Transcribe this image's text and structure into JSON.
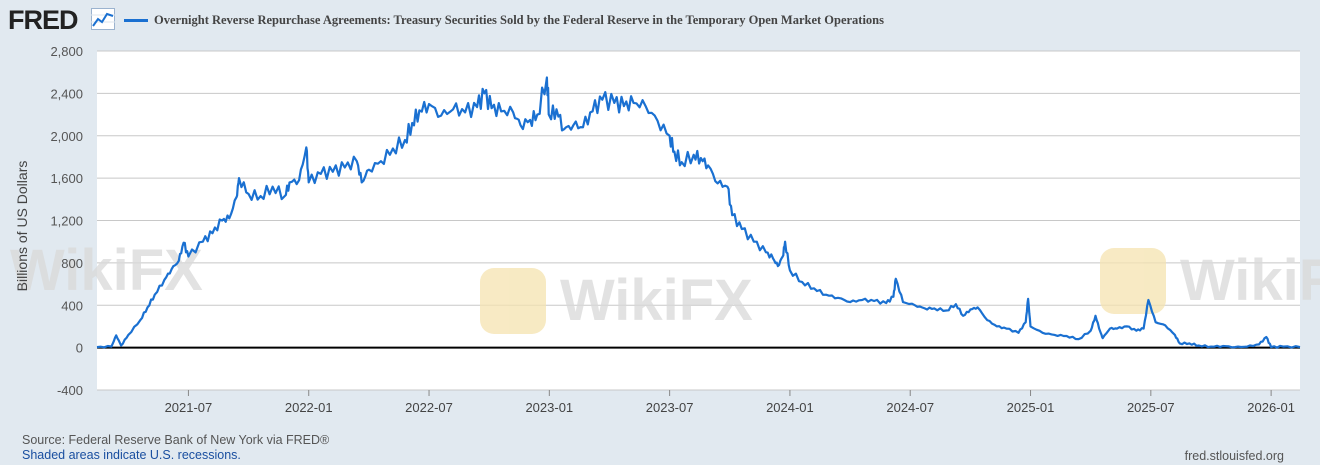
{
  "header": {
    "logo_text": "FRED",
    "logo_icon": "line-chart-icon"
  },
  "chart_data": {
    "type": "line",
    "title": "Overnight Reverse Repurchase Agreements: Treasury Securities Sold by the Federal Reserve in the Temporary Open Market Operations",
    "ylabel": "Billions of US Dollars",
    "xlabel": "",
    "ylim": [
      -400,
      2800
    ],
    "xlim": [
      2021.12,
      2026.12
    ],
    "yticks": [
      -400,
      0,
      400,
      800,
      1200,
      1600,
      2000,
      2400,
      2800
    ],
    "ytick_labels": [
      "-400",
      "0",
      "400",
      "800",
      "1,200",
      "1,600",
      "2,000",
      "2,400",
      "2,800"
    ],
    "xticks": [
      {
        "label": "2021-07",
        "t": 2021.5
      },
      {
        "label": "2022-01",
        "t": 2022.0
      },
      {
        "label": "2022-07",
        "t": 2022.5
      },
      {
        "label": "2023-01",
        "t": 2023.0
      },
      {
        "label": "2023-07",
        "t": 2023.5
      },
      {
        "label": "2024-01",
        "t": 2024.0
      },
      {
        "label": "2024-07",
        "t": 2024.5
      },
      {
        "label": "2025-01",
        "t": 2025.0
      },
      {
        "label": "2025-07",
        "t": 2025.5
      },
      {
        "label": "2026-01",
        "t": 2026.0
      }
    ],
    "legend": "top-left",
    "grid": true,
    "series": [
      {
        "name": "Overnight Reverse Repurchase Agreements: Treasury Securities Sold by the Federal Reserve in the Temporary Open Market Operations",
        "color": "#1a70d1",
        "points": [
          [
            2021.12,
            5
          ],
          [
            2021.18,
            10
          ],
          [
            2021.2,
            115
          ],
          [
            2021.22,
            20
          ],
          [
            2021.25,
            120
          ],
          [
            2021.3,
            260
          ],
          [
            2021.33,
            380
          ],
          [
            2021.36,
            500
          ],
          [
            2021.4,
            640
          ],
          [
            2021.43,
            740
          ],
          [
            2021.46,
            820
          ],
          [
            2021.48,
            990
          ],
          [
            2021.5,
            860
          ],
          [
            2021.56,
            1000
          ],
          [
            2021.6,
            1080
          ],
          [
            2021.64,
            1200
          ],
          [
            2021.67,
            1220
          ],
          [
            2021.7,
            1420
          ],
          [
            2021.71,
            1600
          ],
          [
            2021.75,
            1450
          ],
          [
            2021.8,
            1430
          ],
          [
            2021.85,
            1520
          ],
          [
            2021.9,
            1430
          ],
          [
            2021.92,
            1560
          ],
          [
            2021.96,
            1580
          ],
          [
            2021.99,
            1890
          ],
          [
            2022.0,
            1560
          ],
          [
            2022.05,
            1640
          ],
          [
            2022.1,
            1660
          ],
          [
            2022.15,
            1700
          ],
          [
            2022.2,
            1760
          ],
          [
            2022.22,
            1560
          ],
          [
            2022.25,
            1680
          ],
          [
            2022.3,
            1760
          ],
          [
            2022.35,
            1880
          ],
          [
            2022.4,
            1960
          ],
          [
            2022.43,
            2120
          ],
          [
            2022.46,
            2240
          ],
          [
            2022.5,
            2300
          ],
          [
            2022.55,
            2190
          ],
          [
            2022.6,
            2250
          ],
          [
            2022.65,
            2220
          ],
          [
            2022.7,
            2270
          ],
          [
            2022.73,
            2400
          ],
          [
            2022.76,
            2260
          ],
          [
            2022.8,
            2230
          ],
          [
            2022.85,
            2220
          ],
          [
            2022.88,
            2100
          ],
          [
            2022.92,
            2150
          ],
          [
            2022.95,
            2200
          ],
          [
            2022.99,
            2550
          ],
          [
            2023.0,
            2190
          ],
          [
            2023.03,
            2250
          ],
          [
            2023.06,
            2060
          ],
          [
            2023.1,
            2100
          ],
          [
            2023.14,
            2080
          ],
          [
            2023.18,
            2230
          ],
          [
            2023.22,
            2340
          ],
          [
            2023.27,
            2310
          ],
          [
            2023.31,
            2280
          ],
          [
            2023.35,
            2310
          ],
          [
            2023.4,
            2280
          ],
          [
            2023.45,
            2140
          ],
          [
            2023.5,
            2000
          ],
          [
            2023.52,
            1850
          ],
          [
            2023.55,
            1750
          ],
          [
            2023.6,
            1820
          ],
          [
            2023.63,
            1790
          ],
          [
            2023.66,
            1720
          ],
          [
            2023.7,
            1550
          ],
          [
            2023.74,
            1520
          ],
          [
            2023.76,
            1250
          ],
          [
            2023.8,
            1120
          ],
          [
            2023.85,
            1000
          ],
          [
            2023.9,
            900
          ],
          [
            2023.93,
            840
          ],
          [
            2023.95,
            770
          ],
          [
            2023.97,
            860
          ],
          [
            2023.98,
            1000
          ],
          [
            2024.0,
            730
          ],
          [
            2024.05,
            620
          ],
          [
            2024.1,
            560
          ],
          [
            2024.15,
            500
          ],
          [
            2024.2,
            470
          ],
          [
            2024.25,
            430
          ],
          [
            2024.3,
            450
          ],
          [
            2024.35,
            440
          ],
          [
            2024.4,
            420
          ],
          [
            2024.43,
            480
          ],
          [
            2024.44,
            650
          ],
          [
            2024.47,
            430
          ],
          [
            2024.52,
            400
          ],
          [
            2024.56,
            370
          ],
          [
            2024.6,
            370
          ],
          [
            2024.65,
            350
          ],
          [
            2024.69,
            410
          ],
          [
            2024.72,
            300
          ],
          [
            2024.75,
            360
          ],
          [
            2024.78,
            380
          ],
          [
            2024.82,
            260
          ],
          [
            2024.86,
            200
          ],
          [
            2024.9,
            180
          ],
          [
            2024.95,
            140
          ],
          [
            2024.98,
            240
          ],
          [
            2024.99,
            460
          ],
          [
            2025.0,
            200
          ],
          [
            2025.05,
            140
          ],
          [
            2025.1,
            120
          ],
          [
            2025.15,
            110
          ],
          [
            2025.2,
            80
          ],
          [
            2025.25,
            160
          ],
          [
            2025.27,
            300
          ],
          [
            2025.29,
            150
          ],
          [
            2025.3,
            90
          ],
          [
            2025.33,
            180
          ],
          [
            2025.36,
            180
          ],
          [
            2025.4,
            200
          ],
          [
            2025.44,
            160
          ],
          [
            2025.47,
            180
          ],
          [
            2025.49,
            450
          ],
          [
            2025.52,
            240
          ],
          [
            2025.56,
            210
          ],
          [
            2025.6,
            120
          ],
          [
            2025.62,
            40
          ],
          [
            2025.66,
            40
          ],
          [
            2025.7,
            20
          ],
          [
            2025.75,
            10
          ],
          [
            2025.8,
            15
          ],
          [
            2025.85,
            5
          ],
          [
            2025.9,
            10
          ],
          [
            2025.95,
            30
          ],
          [
            2025.98,
            100
          ],
          [
            2026.0,
            5
          ],
          [
            2026.05,
            10
          ],
          [
            2026.12,
            5
          ]
        ]
      }
    ]
  },
  "footer": {
    "source": "Source: Federal Reserve Bank of New York via FRED®",
    "recession_note": "Shaded areas indicate U.S. recessions.",
    "site": "fred.stlouisfed.org"
  },
  "watermark": {
    "text": "WikiFX",
    "color": "#d9d9d9",
    "accent": "#f5e3b0"
  }
}
